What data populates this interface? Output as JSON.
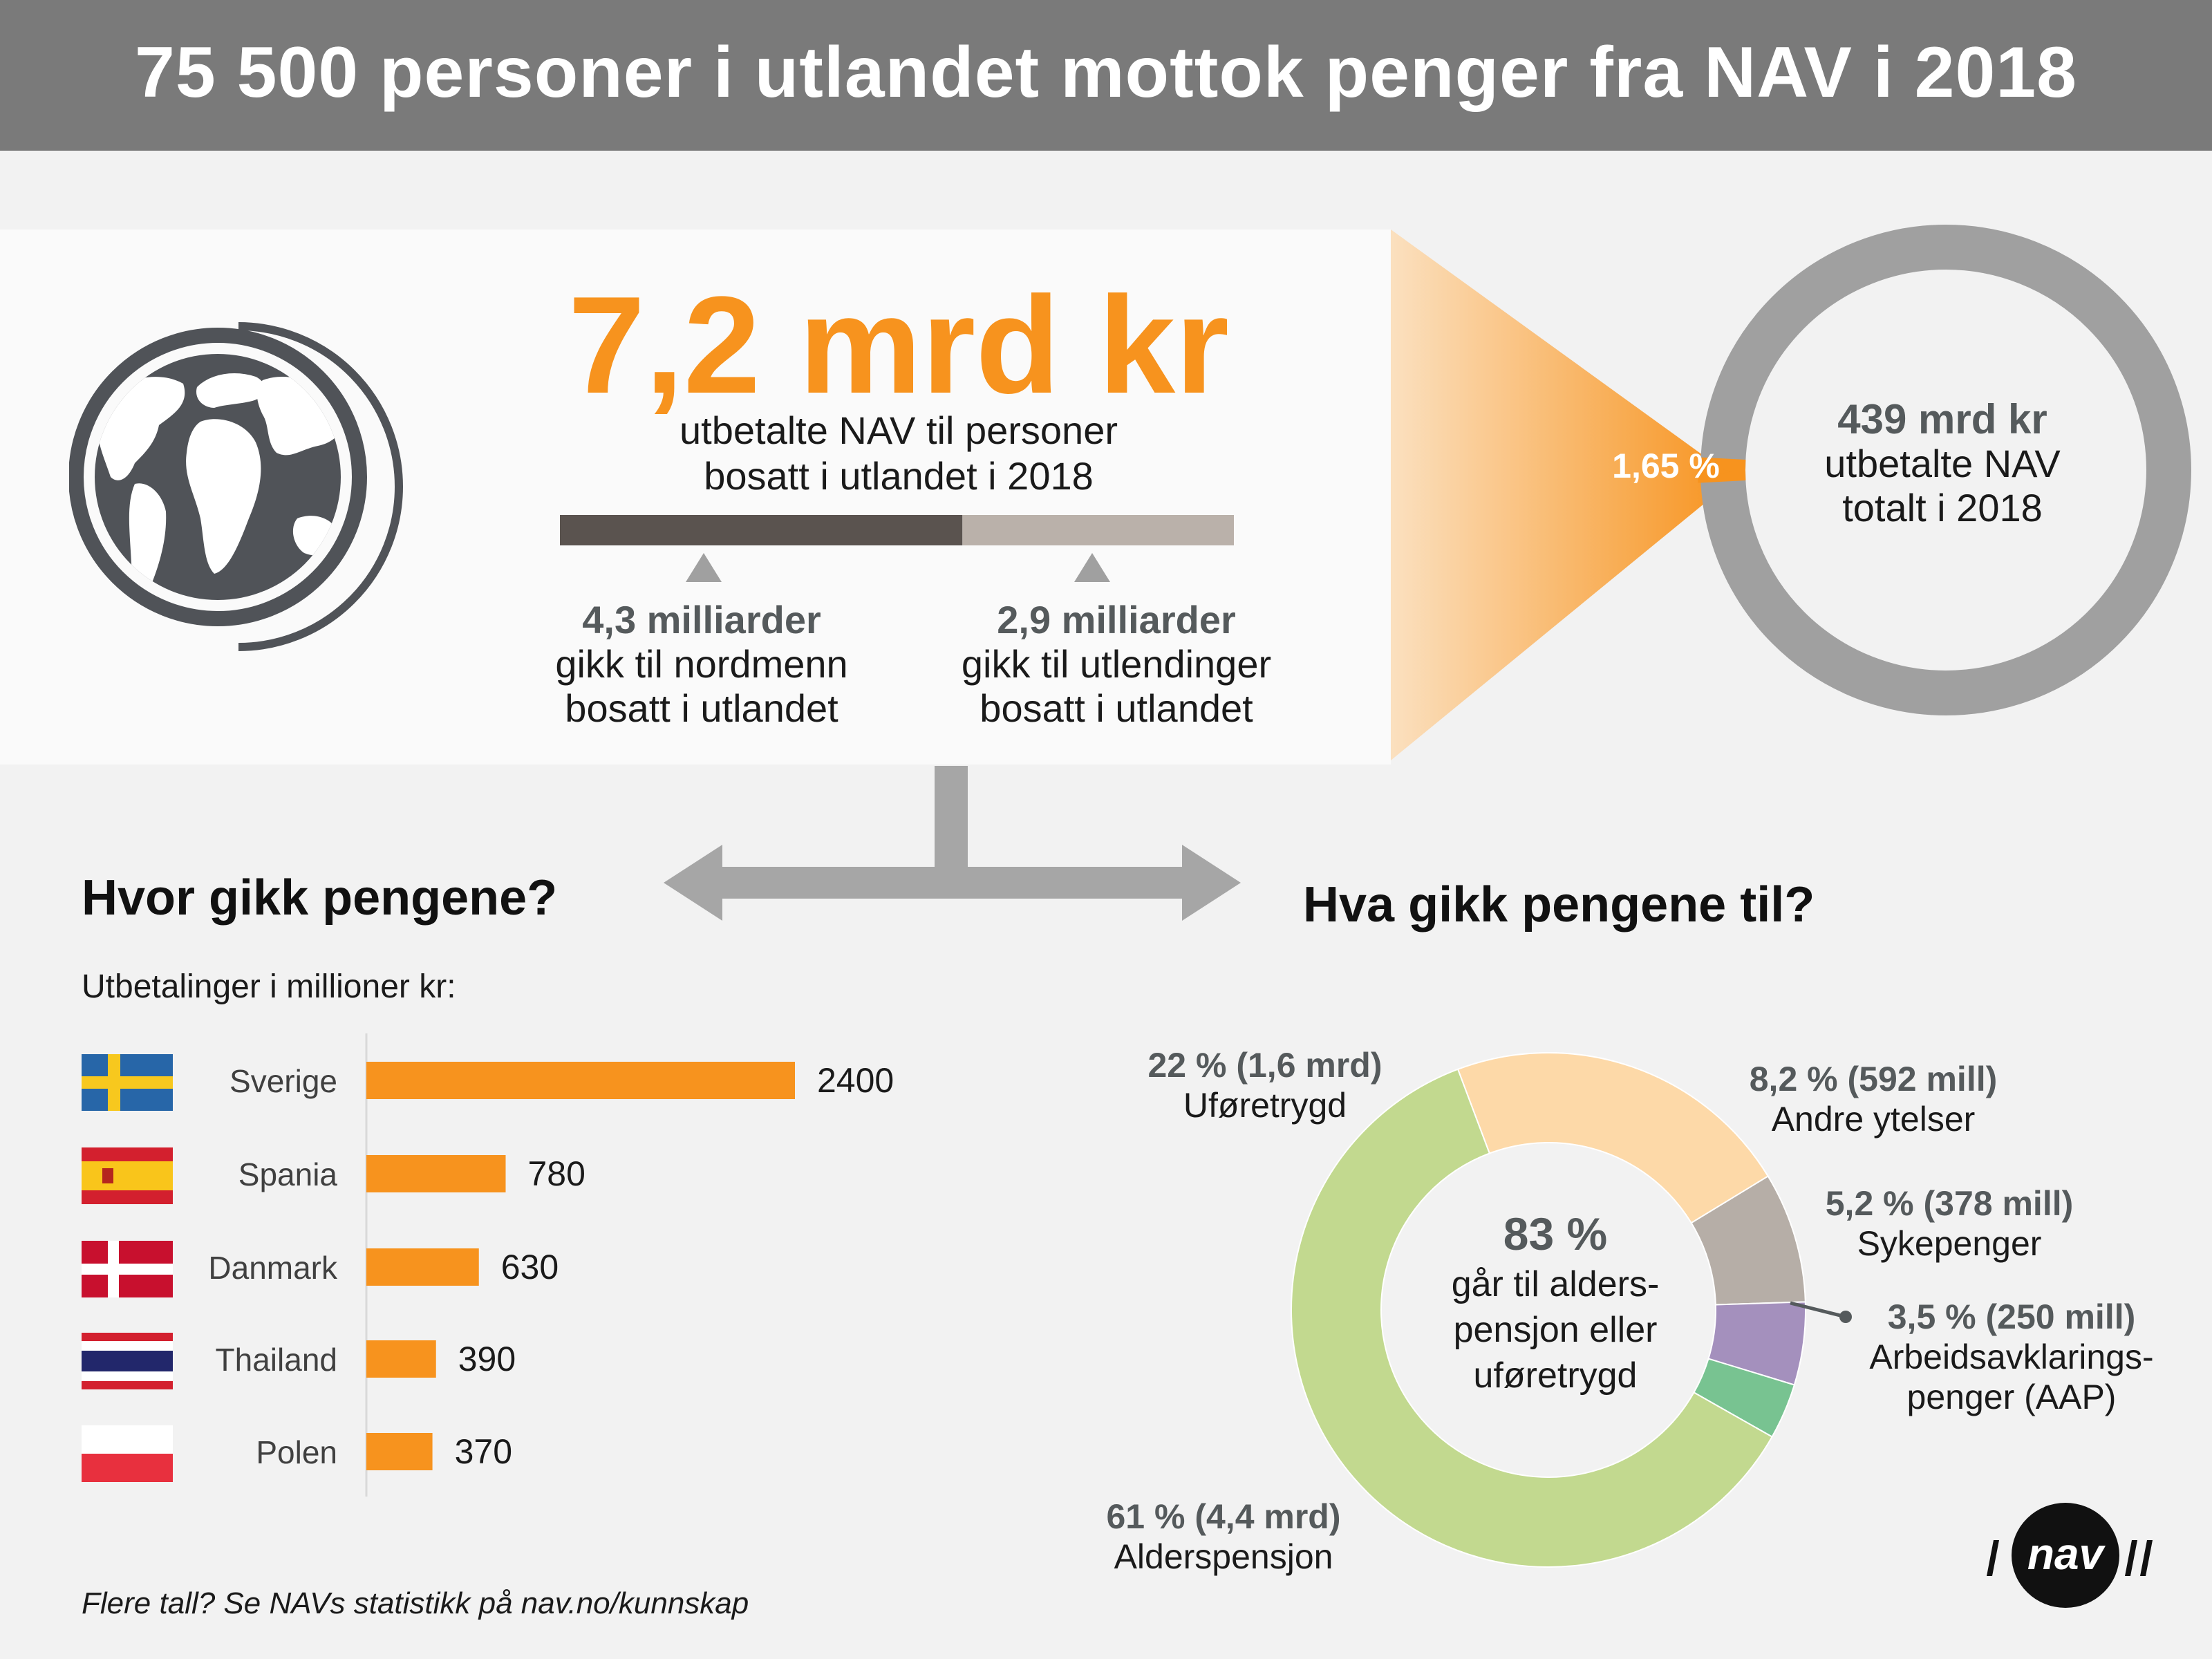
{
  "header": {
    "title": "75 500 personer i utlandet mottok penger fra NAV i 2018"
  },
  "top": {
    "amount": "7,2 mrd kr",
    "description_line1": "utbetalte NAV til personer",
    "description_line2": "bosatt i utlandet i 2018",
    "split": [
      {
        "value": 4.3,
        "amount": "4,3 milliarder",
        "line1": "gikk til nordmenn",
        "line2": "bosatt i utlandet",
        "color": "#5a534f"
      },
      {
        "value": 2.9,
        "amount": "2,9 milliarder",
        "line1": "gikk til utlendinger",
        "line2": "bosatt i utlandet",
        "color": "#bab1aa"
      }
    ],
    "share_label": "1,65 %",
    "total_amount": "439 mrd kr",
    "total_line1": "utbetalte NAV",
    "total_line2": "totalt i 2018"
  },
  "left": {
    "title": "Hvor gikk pengene?",
    "subtitle": "Utbetalinger i millioner kr:"
  },
  "right": {
    "title": "Hva gikk pengene til?",
    "center_pct": "83 %",
    "center_line1": "går til alders-",
    "center_line2": "pensjon eller",
    "center_line3": "uføretrygd"
  },
  "footer": {
    "source": "Flere tall? Se NAVs statistikk på nav.no/kunnskap"
  },
  "logo": {
    "text": "nav"
  },
  "colors": {
    "accent": "#f7931e",
    "header": "#7a7a7a",
    "arrow": "#a6a6a6"
  },
  "chart_data": [
    {
      "type": "bar",
      "orientation": "horizontal",
      "title": "Hvor gikk pengene?",
      "subtitle": "Utbetalinger i millioner kr:",
      "categories": [
        "Sverige",
        "Spania",
        "Danmark",
        "Thailand",
        "Polen"
      ],
      "values": [
        2400,
        780,
        630,
        390,
        370
      ],
      "value_labels": [
        "2400",
        "780",
        "630",
        "390",
        "370"
      ],
      "flags": [
        "sweden-flag-icon",
        "spain-flag-icon",
        "denmark-flag-icon",
        "thailand-flag-icon",
        "poland-flag-icon"
      ],
      "xlim": [
        0,
        2400
      ],
      "grid": false
    },
    {
      "type": "pie",
      "style": "donut",
      "title": "Hva gikk pengene til?",
      "slices": [
        {
          "pct": 61,
          "label_value": "61 % (4,4 mrd)",
          "name": "Alderspensjon",
          "color": "#c2d98f"
        },
        {
          "pct": 22,
          "label_value": "22 % (1,6 mrd)",
          "name": "Uføretrygd",
          "color": "#fdd9a8"
        },
        {
          "pct": 8.2,
          "label_value": "8,2 % (592 mill)",
          "name": "Andre ytelser",
          "color": "#b6aea7"
        },
        {
          "pct": 5.2,
          "label_value": "5,2 % (378 mill)",
          "name": "Sykepenger",
          "color": "#a490bd"
        },
        {
          "pct": 3.5,
          "label_value": "3,5 % (250 mill)",
          "name": "Arbeidsavklarings-",
          "name2": "penger (AAP)",
          "color": "#78c391"
        }
      ]
    },
    {
      "type": "pie",
      "style": "donut",
      "slices": [
        {
          "pct": 1.65,
          "label_value": "1,65 %",
          "color": "#f7931e"
        },
        {
          "pct": 98.35,
          "color": "#a0a0a0"
        }
      ],
      "total_label": "439 mrd kr"
    }
  ]
}
